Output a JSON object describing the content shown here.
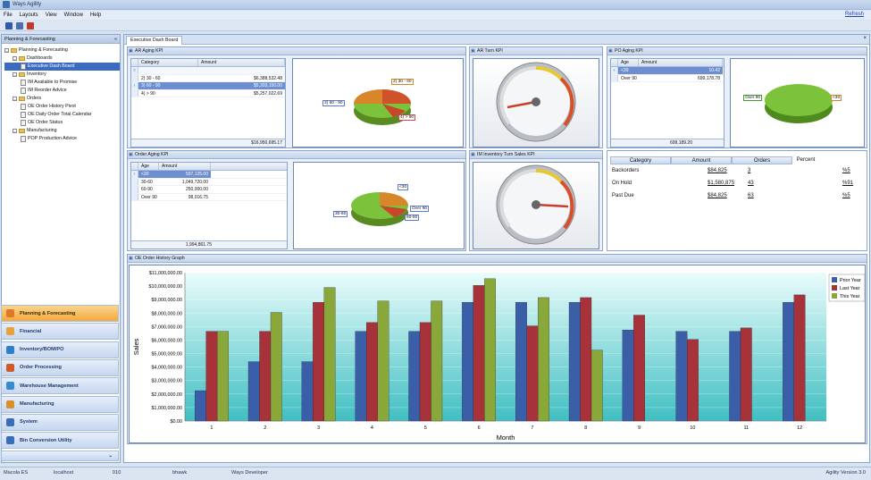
{
  "app": {
    "title": "Ways Agility"
  },
  "menu": {
    "items": [
      "File",
      "Layouts",
      "View",
      "Window",
      "Help"
    ],
    "refresh": "Refresh"
  },
  "toolbar": {
    "icons": [
      "save-icon",
      "save-all-icon",
      "tools-icon"
    ]
  },
  "leftpane": {
    "title": "Planning & Forecasting",
    "tree": [
      {
        "label": "Planning & Forecasting",
        "level": 0,
        "type": "root"
      },
      {
        "label": "Dashboards",
        "level": 1,
        "type": "folder"
      },
      {
        "label": "Executive Dash Board",
        "level": 2,
        "type": "doc",
        "selected": true
      },
      {
        "label": "Inventory",
        "level": 1,
        "type": "folder"
      },
      {
        "label": "IM Available to Promise",
        "level": 2,
        "type": "doc"
      },
      {
        "label": "IM Reorder Advice",
        "level": 2,
        "type": "doc"
      },
      {
        "label": "Orders",
        "level": 1,
        "type": "folder"
      },
      {
        "label": "OE Order History Pivot",
        "level": 2,
        "type": "doc"
      },
      {
        "label": "OE Daily Order Total Calendar",
        "level": 2,
        "type": "doc"
      },
      {
        "label": "OE Order Status",
        "level": 2,
        "type": "doc"
      },
      {
        "label": "Manufacturing",
        "level": 1,
        "type": "folder"
      },
      {
        "label": "POP Production Advice",
        "level": 2,
        "type": "doc"
      }
    ],
    "nav": [
      {
        "label": "Planning & Forecasting",
        "active": true
      },
      {
        "label": "Financial"
      },
      {
        "label": "Inventory/BOM/PO"
      },
      {
        "label": "Order Processing"
      },
      {
        "label": "Warehouse Management"
      },
      {
        "label": "Manufacturing"
      },
      {
        "label": "System"
      },
      {
        "label": "Bin Conversion Utility"
      }
    ]
  },
  "status": {
    "company": "Macola ES",
    "server": "localhost",
    "code": "010",
    "user": "bhawk",
    "role": "Ways Developer",
    "version": "Agility Version 3.0"
  },
  "tab": {
    "label": "Executive Dash Board"
  },
  "ar_aging": {
    "title": "AR Aging KPI",
    "headers": [
      "Category",
      "Amount"
    ],
    "rows": [
      [
        "2) 30 - 60",
        "$6,388,532.48"
      ],
      [
        "3) 60 - 90",
        "$5,303,150.00"
      ],
      [
        "4) > 90",
        "$5,257,022.69"
      ]
    ],
    "total": "$16,950,695.17",
    "pie_labels": [
      "2) 30 - 60",
      "3) 60 - 90",
      "4) > 90"
    ]
  },
  "ar_turn": {
    "title": "AR Turn KPI"
  },
  "po_aging": {
    "title": "PO Aging KPI",
    "headers": [
      "Age",
      "Amount"
    ],
    "rows": [
      [
        "<30",
        "10.42"
      ],
      [
        "Over 90",
        "699,178.78"
      ]
    ],
    "total": "699,189.20",
    "pie_labels": [
      "Over 90",
      "<30"
    ]
  },
  "order_aging": {
    "title": "Order Aging KPI",
    "headers": [
      "Age",
      "Amount"
    ],
    "rows": [
      [
        "<30",
        "597,125.00"
      ],
      [
        "30-60",
        "1,049,720.00"
      ],
      [
        "60-90",
        "250,000.00"
      ],
      [
        "Over 90",
        "98,016.75"
      ]
    ],
    "total": "1,994,861.75",
    "pie_labels": [
      "<30",
      "Over 90",
      "30-60",
      "60-90"
    ]
  },
  "im_turn": {
    "title": "IM Inventory Turn Sales KPI"
  },
  "order_kpi": {
    "headers": [
      "Category",
      "Amount",
      "Orders",
      "Percent"
    ],
    "rows": [
      {
        "category": "Backorders",
        "amount": "$84,825",
        "orders": "3",
        "percent": "%5"
      },
      {
        "category": "On Hold",
        "amount": "$1,580,875",
        "orders": "43",
        "percent": "%91"
      },
      {
        "category": "Past Due",
        "amount": "$84,825",
        "orders": "63",
        "percent": "%5"
      }
    ]
  },
  "history": {
    "title": "OE Order History Graph"
  },
  "chart_data": {
    "type": "bar",
    "title": "",
    "xlabel": "Month",
    "ylabel": "Sales",
    "ylim": [
      0,
      11000000
    ],
    "yticks": [
      "$0.00",
      "$1,000,000.00",
      "$2,000,000.00",
      "$3,000,000.00",
      "$4,000,000.00",
      "$5,000,000.00",
      "$6,000,000.00",
      "$7,000,000.00",
      "$8,000,000.00",
      "$9,000,000.00",
      "$10,000,000.00",
      "$11,000,000.00"
    ],
    "categories": [
      "1",
      "2",
      "3",
      "4",
      "5",
      "6",
      "7",
      "8",
      "9",
      "10",
      "11",
      "12"
    ],
    "legend": "top-right",
    "series": [
      {
        "name": "Prior Year",
        "color": "#3a5fa8",
        "values": [
          2250000,
          4400000,
          4400000,
          6650000,
          6650000,
          8800000,
          8800000,
          8800000,
          6750000,
          6650000,
          6650000,
          8800000
        ]
      },
      {
        "name": "Last Year",
        "color": "#a8323a",
        "values": [
          6650000,
          6650000,
          8800000,
          7300000,
          7300000,
          10050000,
          7050000,
          9150000,
          7850000,
          6050000,
          6900000,
          9350000
        ]
      },
      {
        "name": "This Year",
        "color": "#8aa83a",
        "values": [
          6650000,
          8050000,
          9900000,
          8900000,
          8900000,
          10550000,
          9150000,
          5250000,
          null,
          null,
          null,
          null
        ]
      }
    ]
  },
  "colors": {
    "accent": "#3b6bbf",
    "nav_active": "#f4a93c",
    "pie_green": "#7cc23a",
    "pie_orange": "#e07a2a",
    "pie_red": "#c8462a"
  }
}
